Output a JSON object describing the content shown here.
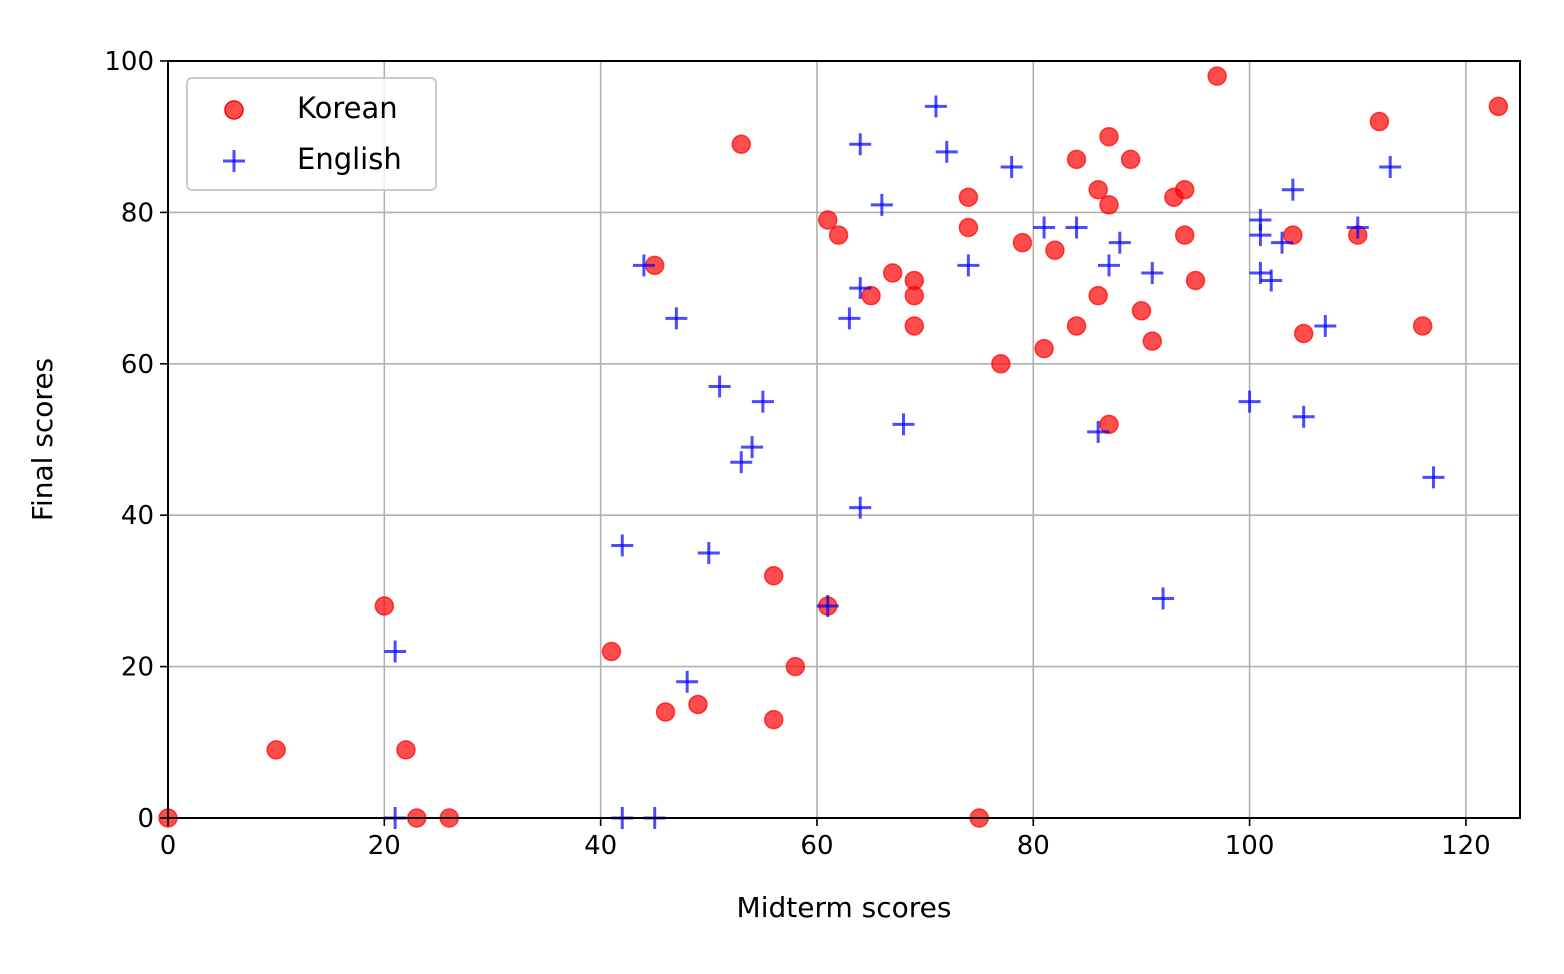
{
  "chart_data": {
    "type": "scatter",
    "xlabel": "Midterm scores",
    "ylabel": "Final scores",
    "xlim": [
      0,
      125
    ],
    "ylim": [
      0,
      100
    ],
    "xticks": [
      0,
      20,
      40,
      60,
      80,
      100,
      120
    ],
    "yticks": [
      0,
      20,
      40,
      60,
      80,
      100
    ],
    "grid": true,
    "legend_position": "top-left",
    "series": [
      {
        "name": "Korean",
        "marker": "circle",
        "color": "#ff0000",
        "points": [
          [
            0,
            0
          ],
          [
            10,
            9
          ],
          [
            20,
            28
          ],
          [
            22,
            9
          ],
          [
            23,
            0
          ],
          [
            26,
            0
          ],
          [
            41,
            22
          ],
          [
            45,
            73
          ],
          [
            46,
            14
          ],
          [
            49,
            15
          ],
          [
            53,
            89
          ],
          [
            56,
            32
          ],
          [
            56,
            13
          ],
          [
            58,
            20
          ],
          [
            61,
            79
          ],
          [
            61,
            28
          ],
          [
            62,
            77
          ],
          [
            65,
            69
          ],
          [
            67,
            72
          ],
          [
            69,
            71
          ],
          [
            69,
            69
          ],
          [
            69,
            65
          ],
          [
            74,
            82
          ],
          [
            74,
            78
          ],
          [
            75,
            0
          ],
          [
            77,
            60
          ],
          [
            79,
            76
          ],
          [
            81,
            62
          ],
          [
            82,
            75
          ],
          [
            84,
            87
          ],
          [
            84,
            65
          ],
          [
            86,
            83
          ],
          [
            86,
            69
          ],
          [
            87,
            90
          ],
          [
            87,
            81
          ],
          [
            87,
            52
          ],
          [
            89,
            87
          ],
          [
            90,
            67
          ],
          [
            91,
            63
          ],
          [
            93,
            82
          ],
          [
            94,
            83
          ],
          [
            94,
            77
          ],
          [
            95,
            71
          ],
          [
            97,
            98
          ],
          [
            104,
            77
          ],
          [
            105,
            64
          ],
          [
            110,
            77
          ],
          [
            112,
            92
          ],
          [
            116,
            65
          ],
          [
            123,
            94
          ]
        ]
      },
      {
        "name": "English",
        "marker": "plus",
        "color": "#0000ff",
        "points": [
          [
            21,
            22
          ],
          [
            21,
            0
          ],
          [
            42,
            36
          ],
          [
            42,
            0
          ],
          [
            44,
            73
          ],
          [
            45,
            0
          ],
          [
            47,
            66
          ],
          [
            48,
            18
          ],
          [
            50,
            35
          ],
          [
            51,
            57
          ],
          [
            53,
            47
          ],
          [
            54,
            49
          ],
          [
            55,
            55
          ],
          [
            61,
            28
          ],
          [
            63,
            66
          ],
          [
            64,
            89
          ],
          [
            64,
            70
          ],
          [
            64,
            41
          ],
          [
            66,
            81
          ],
          [
            68,
            52
          ],
          [
            71,
            94
          ],
          [
            72,
            88
          ],
          [
            74,
            73
          ],
          [
            78,
            86
          ],
          [
            81,
            78
          ],
          [
            84,
            78
          ],
          [
            86,
            51
          ],
          [
            87,
            73
          ],
          [
            88,
            76
          ],
          [
            91,
            72
          ],
          [
            92,
            29
          ],
          [
            100,
            55
          ],
          [
            101,
            79
          ],
          [
            101,
            77
          ],
          [
            101,
            72
          ],
          [
            102,
            71
          ],
          [
            103,
            76
          ],
          [
            104,
            83
          ],
          [
            105,
            53
          ],
          [
            107,
            65
          ],
          [
            110,
            78
          ],
          [
            113,
            86
          ],
          [
            117,
            45
          ]
        ]
      }
    ]
  }
}
